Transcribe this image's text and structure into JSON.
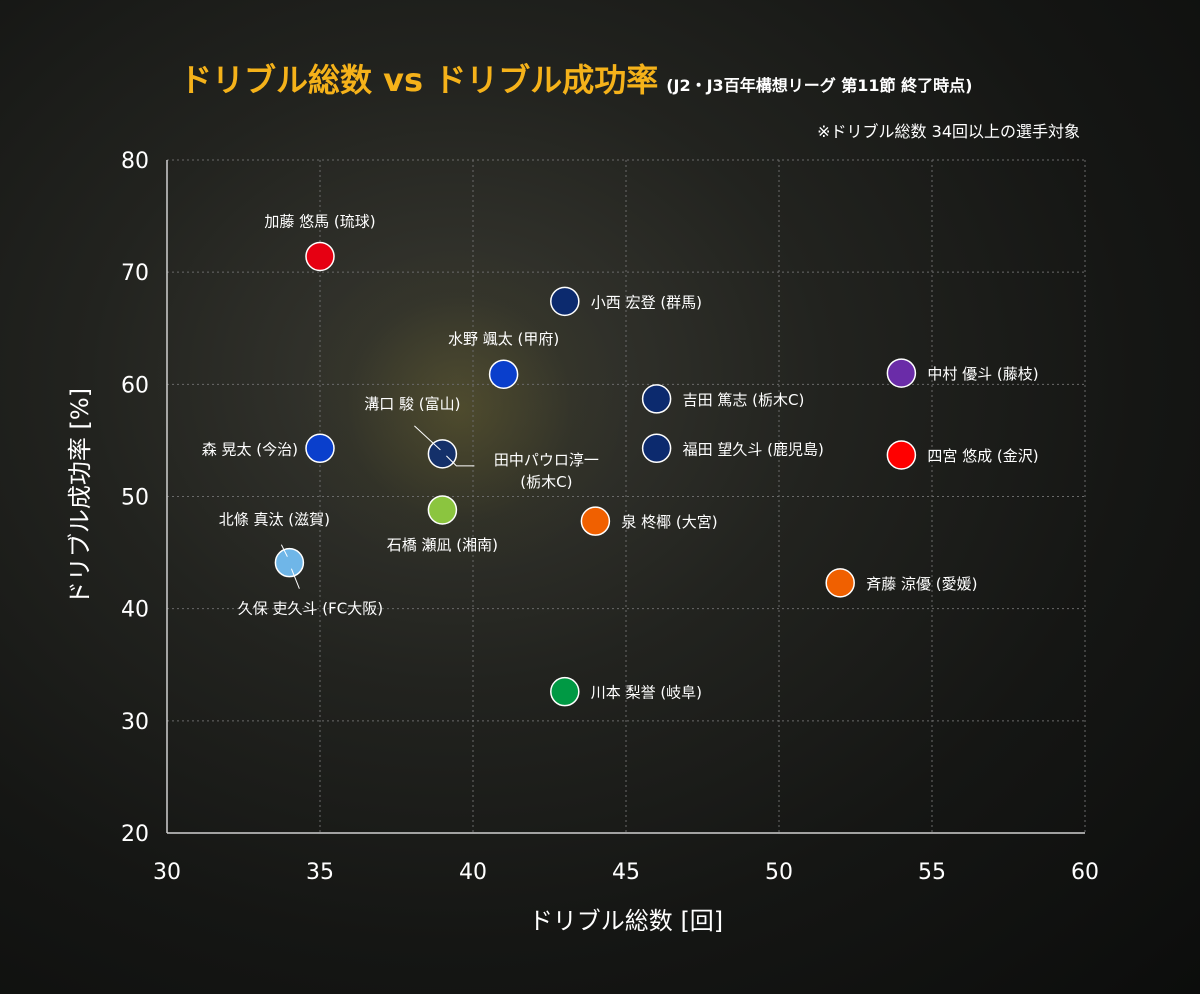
{
  "title": {
    "main": "ドリブル総数 vs ドリブル成功率",
    "sub": "(J2・J3百年構想リーグ 第11節 終了時点)",
    "note": "※ドリブル総数 34回以上の選手対象"
  },
  "chart_data": {
    "type": "scatter",
    "xlabel": "ドリブル総数 [回]",
    "ylabel": "ドリブル成功率 [%]",
    "xlim": [
      30,
      60
    ],
    "ylim": [
      20,
      80
    ],
    "xticks": [
      "30",
      "35",
      "40",
      "45",
      "50",
      "55",
      "60"
    ],
    "yticks": [
      "20",
      "30",
      "40",
      "50",
      "60",
      "70",
      "80"
    ],
    "grid": true,
    "points": [
      {
        "label": "加藤 悠馬 (琉球)",
        "x": 35,
        "y": 71.4,
        "color": "#e60012",
        "label_pos": "above"
      },
      {
        "label": "小西 宏登 (群馬)",
        "x": 43,
        "y": 67.4,
        "color": "#0c2a6e",
        "label_pos": "right"
      },
      {
        "label": "水野 颯太 (甲府)",
        "x": 41,
        "y": 60.9,
        "color": "#0a3fcc",
        "label_pos": "above"
      },
      {
        "label": "中村 優斗 (藤枝)",
        "x": 54,
        "y": 61.0,
        "color": "#6a2ca8",
        "label_pos": "right"
      },
      {
        "label": "吉田 篤志 (栃木C)",
        "x": 46,
        "y": 58.7,
        "color": "#0c2a6e",
        "label_pos": "right"
      },
      {
        "label": "森 晃太 (今治)",
        "x": 35,
        "y": 54.3,
        "color": "#0a3fcc",
        "label_pos": "left"
      },
      {
        "label": "溝口 駿 (富山)",
        "x": 39,
        "y": 53.8,
        "color": "#14306a",
        "label_pos": "leader-upleft"
      },
      {
        "label": "田中パウロ淳一|(栃木C)",
        "x": 39,
        "y": 53.8,
        "color": "#14306a",
        "label_pos": "leader-right"
      },
      {
        "label": "福田 望久斗 (鹿児島)",
        "x": 46,
        "y": 54.3,
        "color": "#0c2a6e",
        "label_pos": "right"
      },
      {
        "label": "四宮 悠成 (金沢)",
        "x": 54,
        "y": 53.7,
        "color": "#ff0000",
        "label_pos": "right"
      },
      {
        "label": "石橋 瀬凪 (湘南)",
        "x": 39,
        "y": 48.8,
        "color": "#8bc53f",
        "label_pos": "below"
      },
      {
        "label": "泉 柊椰 (大宮)",
        "x": 44,
        "y": 47.8,
        "color": "#f06000",
        "label_pos": "right"
      },
      {
        "label": "北條 真汰 (滋賀)",
        "x": 34,
        "y": 44.1,
        "color": "#6fb6e8",
        "label_pos": "leader-up"
      },
      {
        "label": "久保 吏久斗 (FC大阪)",
        "x": 34,
        "y": 44.1,
        "color": "#6fb6e8",
        "label_pos": "leader-down"
      },
      {
        "label": "斉藤 涼優 (愛媛)",
        "x": 52,
        "y": 42.3,
        "color": "#f06000",
        "label_pos": "right"
      },
      {
        "label": "川本 梨誉 (岐阜)",
        "x": 43,
        "y": 32.6,
        "color": "#009944",
        "label_pos": "right"
      }
    ]
  }
}
